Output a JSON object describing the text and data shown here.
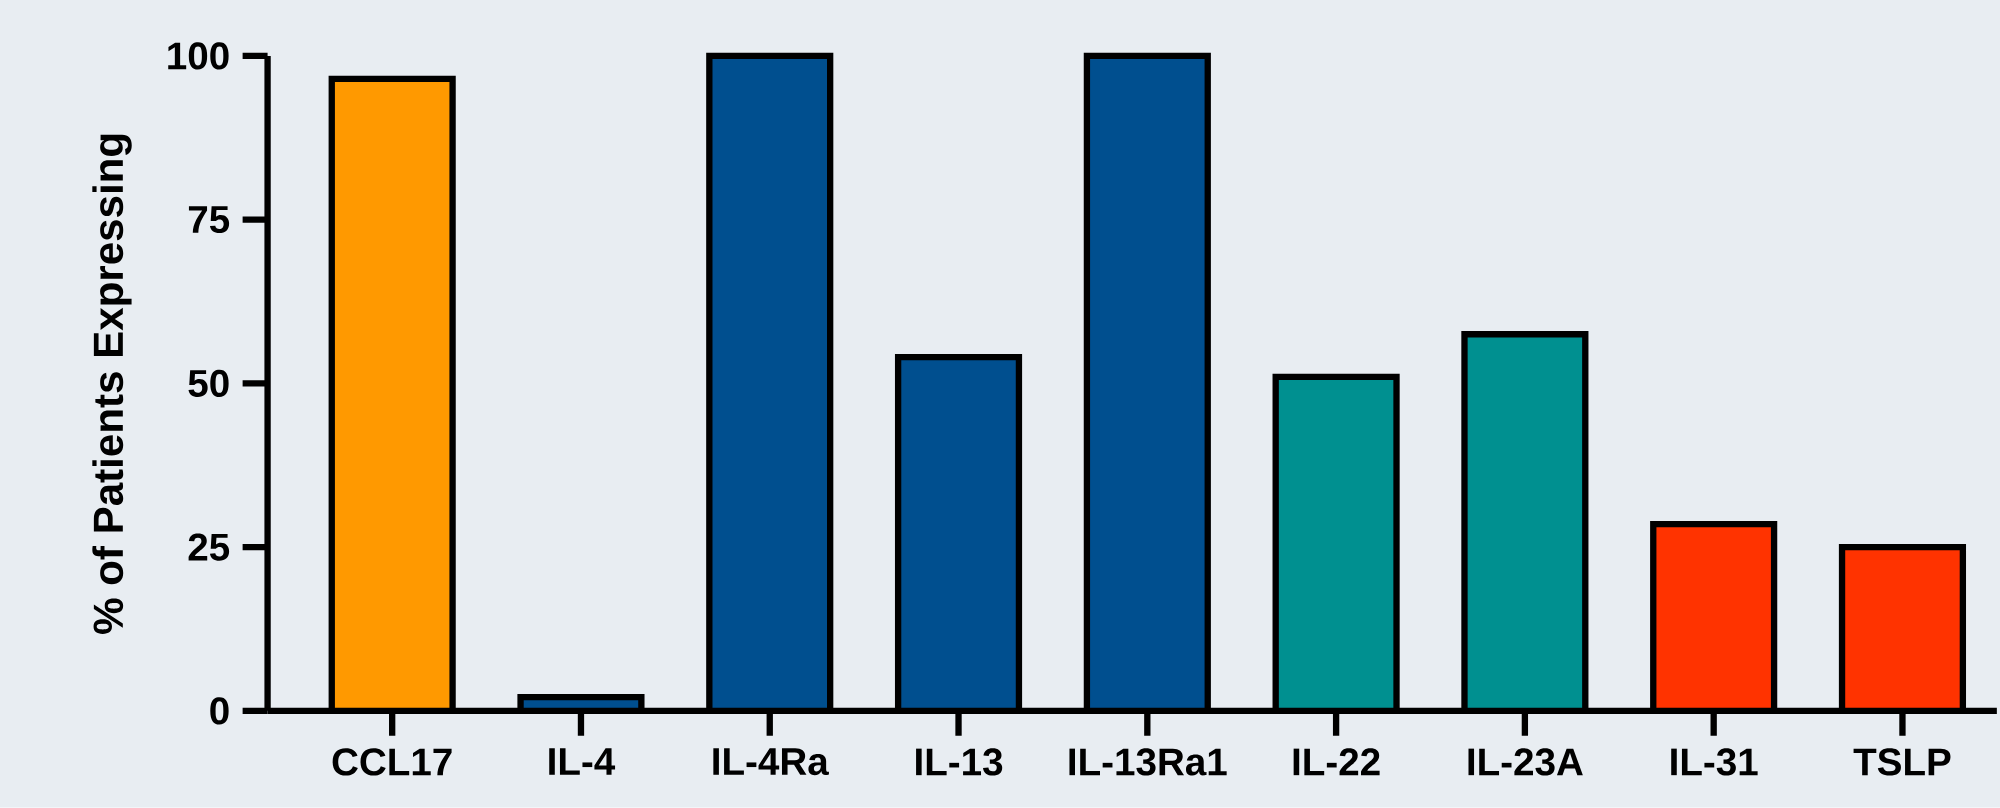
{
  "chart_data": {
    "type": "bar",
    "ylabel": "% of Patients Expressing",
    "categories": [
      "CCL17",
      "IL-4",
      "IL-4Ra",
      "IL-13",
      "IL-13Ra1",
      "IL-22",
      "IL-23A",
      "IL-31",
      "TSLP"
    ],
    "values": [
      96.5,
      2.1,
      100,
      54,
      100,
      51,
      57.5,
      28.5,
      25
    ],
    "colors": [
      "#ff9900",
      "#004f8f",
      "#004f8f",
      "#004f8f",
      "#004f8f",
      "#009090",
      "#009090",
      "#ff3300",
      "#ff3300"
    ],
    "ylim": [
      0,
      100
    ],
    "yticks": [
      0,
      25,
      50,
      75,
      100
    ],
    "grid": false
  }
}
